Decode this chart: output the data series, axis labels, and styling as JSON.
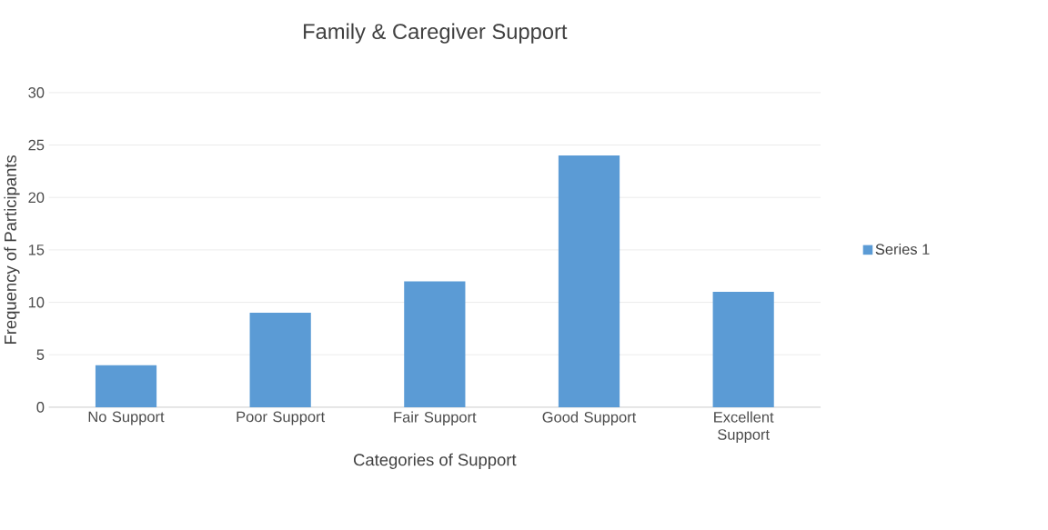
{
  "chart_data": {
    "type": "bar",
    "title": "Family & Caregiver Support",
    "xlabel": "Categories of Support",
    "ylabel": "Frequency of Participants",
    "categories": [
      "No Support",
      "Poor Support",
      "Fair Support",
      "Good Support",
      "Excellent Support"
    ],
    "series": [
      {
        "name": "Series 1",
        "color": "#5b9bd5",
        "values": [
          4,
          9,
          12,
          24,
          11
        ]
      }
    ],
    "ylim": [
      0,
      30
    ],
    "yticks": [
      0,
      5,
      10,
      15,
      20,
      25,
      30
    ],
    "grid": "y",
    "legend": "right"
  }
}
